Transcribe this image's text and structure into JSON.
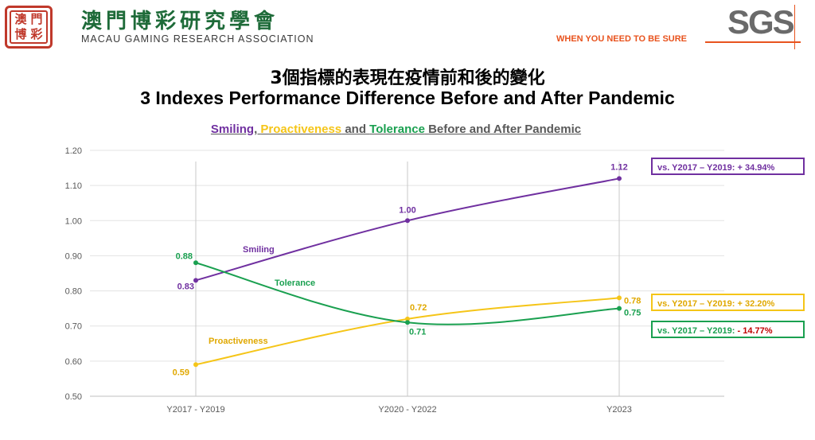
{
  "header": {
    "seal_chars": [
      "澳",
      "門",
      "博",
      "彩"
    ],
    "org_cn": "澳門博彩研究學會",
    "org_en": "MACAU GAMING RESEARCH ASSOCIATION",
    "tagline": "WHEN YOU NEED TO BE SURE",
    "logo": "SGS"
  },
  "title_cn": "3個指標的表現在疫情前和後的變化",
  "title_en": "3 Indexes Performance Difference Before and After Pandemic",
  "subtitle": {
    "smiling": "Smiling",
    "comma": ", ",
    "pro": "Proactiveness",
    "and": " and ",
    "tol": "Tolerance",
    "rest": " Before and After Pandemic"
  },
  "comparisons": {
    "smiling": "vs. Y2017 – Y2019: + 34.94%",
    "pro": "vs. Y2017 – Y2019: + 32.20%",
    "tol_prefix": "vs. Y2017 – Y2019: ",
    "tol_value": "- 14.77%"
  },
  "colors": {
    "smiling": "#7030a0",
    "proactiveness": "#f5c518",
    "tolerance": "#1aa050",
    "accent": "#e8531e"
  },
  "chart_data": {
    "type": "line",
    "categories": [
      "Y2017 - Y2019",
      "Y2020 - Y2022",
      "Y2023"
    ],
    "series": [
      {
        "name": "Smiling",
        "values": [
          0.83,
          1.0,
          1.12
        ],
        "labels": [
          "0.83",
          "1.00",
          "1.12"
        ]
      },
      {
        "name": "Proactiveness",
        "values": [
          0.59,
          0.72,
          0.78
        ],
        "labels": [
          "0.59",
          "0.72",
          "0.78"
        ]
      },
      {
        "name": "Tolerance",
        "values": [
          0.88,
          0.71,
          0.75
        ],
        "labels": [
          "0.88",
          "0.71",
          "0.75"
        ]
      }
    ],
    "yticks": [
      "0.50",
      "0.60",
      "0.70",
      "0.80",
      "0.90",
      "1.00",
      "1.10",
      "1.20"
    ],
    "ylim": [
      0.5,
      1.2
    ],
    "grid": true,
    "legend": "inline labels"
  }
}
